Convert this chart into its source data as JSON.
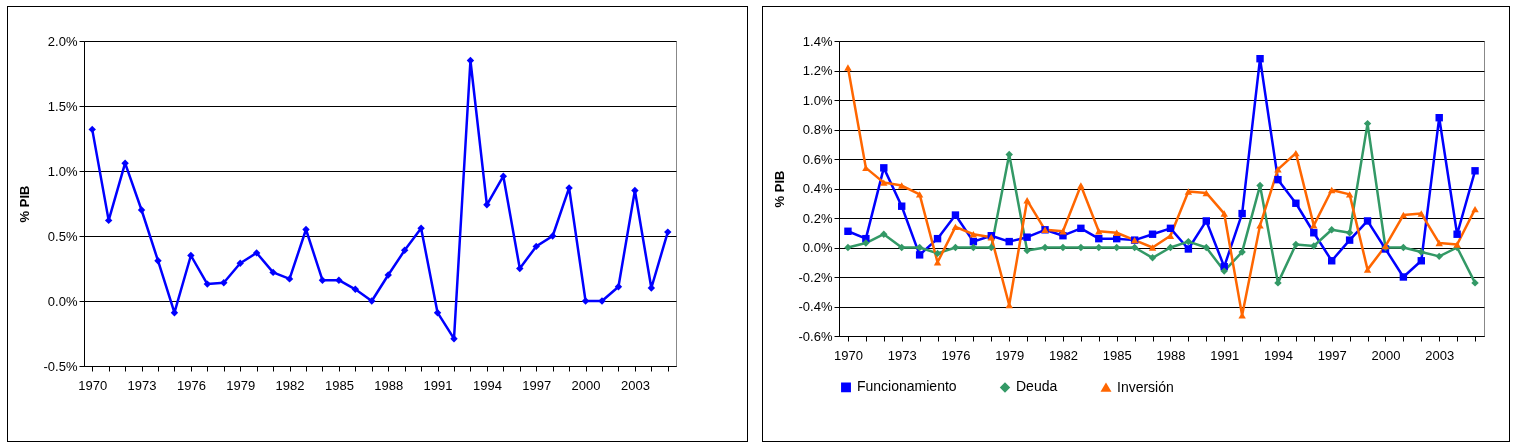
{
  "chart_data": [
    {
      "type": "line",
      "ylabel": "% PIB",
      "categories": [
        "1970",
        null,
        null,
        "1973",
        null,
        null,
        "1976",
        null,
        null,
        "1979",
        null,
        null,
        "1982",
        null,
        null,
        "1985",
        null,
        null,
        "1988",
        null,
        null,
        "1991",
        null,
        null,
        "1994",
        null,
        null,
        "1997",
        null,
        null,
        "2000",
        null,
        null,
        "2003",
        null,
        null
      ],
      "values": [
        1.32,
        0.62,
        1.06,
        0.7,
        0.31,
        -0.09,
        0.35,
        0.13,
        0.14,
        0.29,
        0.37,
        0.22,
        0.17,
        0.55,
        0.16,
        0.16,
        0.09,
        0.0,
        0.2,
        0.39,
        0.56,
        -0.09,
        -0.29,
        1.85,
        0.74,
        0.96,
        0.25,
        0.42,
        0.5,
        0.87,
        0.0,
        0.0,
        0.11,
        0.85,
        0.1,
        0.53
      ],
      "color": "#0000ff",
      "marker": "diamond",
      "ylim": [
        -0.5,
        2.0
      ],
      "yticks": [
        {
          "value": -0.5,
          "label": "-0.5%"
        },
        {
          "value": 0,
          "label": "0.0%"
        },
        {
          "value": 0.5,
          "label": "0.5%"
        },
        {
          "value": 1.0,
          "label": "1.0%"
        },
        {
          "value": 1.5,
          "label": "1.5%"
        },
        {
          "value": 2.0,
          "label": "2.0%"
        }
      ],
      "grid": "y"
    },
    {
      "type": "line",
      "ylabel": "% PIB",
      "categories": [
        "1970",
        null,
        null,
        "1973",
        null,
        null,
        "1976",
        null,
        null,
        "1979",
        null,
        null,
        "1982",
        null,
        null,
        "1985",
        null,
        null,
        "1988",
        null,
        null,
        "1991",
        null,
        null,
        "1994",
        null,
        null,
        "1997",
        null,
        null,
        "2000",
        null,
        null,
        "2003",
        null,
        null
      ],
      "series": [
        {
          "name": "Funcionamiento",
          "color": "#0000ff",
          "marker": "square",
          "values": [
            0.11,
            0.06,
            0.54,
            0.28,
            -0.05,
            0.06,
            0.22,
            0.04,
            0.08,
            0.04,
            0.07,
            0.12,
            0.08,
            0.13,
            0.06,
            0.06,
            0.05,
            0.09,
            0.13,
            -0.01,
            0.18,
            -0.13,
            0.23,
            1.28,
            0.46,
            0.3,
            0.1,
            -0.09,
            0.05,
            0.18,
            -0.01,
            -0.2,
            -0.09,
            0.88,
            0.09,
            0.52
          ]
        },
        {
          "name": "Deuda",
          "color": "#339966",
          "marker": "diamond",
          "values": [
            0,
            0.03,
            0.09,
            0,
            0,
            -0.04,
            0,
            0,
            0,
            0.63,
            -0.02,
            0,
            0,
            0,
            0,
            0,
            0,
            -0.07,
            0,
            0.04,
            0,
            -0.16,
            -0.03,
            0.42,
            -0.24,
            0.02,
            0.01,
            0.12,
            0.1,
            0.84,
            0,
            0,
            -0.03,
            -0.06,
            0,
            -0.24
          ]
        },
        {
          "name": "Inversión",
          "color": "#ff6600",
          "marker": "triangle",
          "values": [
            1.22,
            0.54,
            0.44,
            0.42,
            0.36,
            -0.1,
            0.14,
            0.09,
            0.07,
            -0.39,
            0.32,
            0.12,
            0.11,
            0.42,
            0.11,
            0.1,
            0.05,
            0.0,
            0.08,
            0.38,
            0.37,
            0.23,
            -0.46,
            0.15,
            0.53,
            0.64,
            0.15,
            0.39,
            0.36,
            -0.15,
            0.01,
            0.22,
            0.23,
            0.03,
            0.02,
            0.26
          ]
        }
      ],
      "ylim": [
        -0.6,
        1.4
      ],
      "yticks": [
        {
          "value": -0.6,
          "label": "-0.6%"
        },
        {
          "value": -0.4,
          "label": "-0.4%"
        },
        {
          "value": -0.2,
          "label": "-0.2%"
        },
        {
          "value": 0,
          "label": "0.0%"
        },
        {
          "value": 0.2,
          "label": "0.2%"
        },
        {
          "value": 0.4,
          "label": "0.4%"
        },
        {
          "value": 0.6,
          "label": "0.6%"
        },
        {
          "value": 0.8,
          "label": "0.8%"
        },
        {
          "value": 1.0,
          "label": "1.0%"
        },
        {
          "value": 1.2,
          "label": "1.2%"
        },
        {
          "value": 1.4,
          "label": "1.4%"
        }
      ],
      "grid": "y",
      "legend": "bottom"
    }
  ]
}
